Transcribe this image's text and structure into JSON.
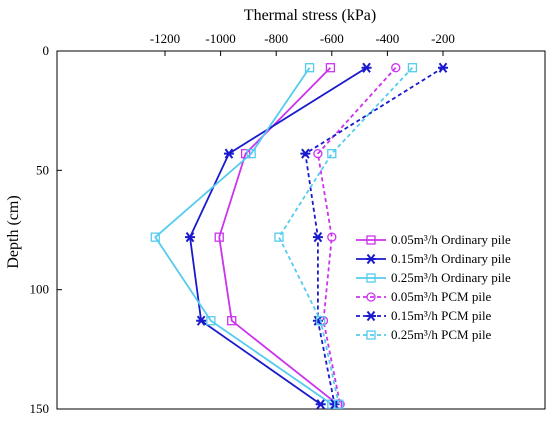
{
  "chart_data": {
    "type": "line",
    "xlabel": "Thermal stress (kPa)",
    "ylabel": "Depth (cm)",
    "xlim": [
      -1300,
      -150
    ],
    "ylim": [
      0,
      150
    ],
    "x_axis_position": "top",
    "y_inverted": true,
    "x_ticks": [
      -1200,
      -1000,
      -800,
      -600,
      -400,
      -200
    ],
    "y_ticks": [
      0,
      50,
      100,
      150
    ],
    "legend_position": "right-middle",
    "grid": false,
    "series": [
      {
        "name": "0.05m³/h Ordinary pile",
        "color": "#cc33ee",
        "dash": "solid",
        "marker": "square",
        "points": [
          [
            -605,
            7
          ],
          [
            -910,
            43
          ],
          [
            -1005,
            78
          ],
          [
            -960,
            113
          ],
          [
            -580,
            148
          ]
        ]
      },
      {
        "name": "0.15m³/h Ordinary pile",
        "color": "#1a1acc",
        "dash": "solid",
        "marker": "star",
        "points": [
          [
            -475,
            7
          ],
          [
            -970,
            43
          ],
          [
            -1110,
            78
          ],
          [
            -1070,
            113
          ],
          [
            -640,
            148
          ]
        ]
      },
      {
        "name": "0.25m³/h Ordinary pile",
        "color": "#55ccee",
        "dash": "solid",
        "marker": "square",
        "points": [
          [
            -680,
            7
          ],
          [
            -890,
            43
          ],
          [
            -1235,
            78
          ],
          [
            -1035,
            113
          ],
          [
            -600,
            148
          ]
        ]
      },
      {
        "name": "0.05m³/h PCM pile",
        "color": "#cc33ee",
        "dash": "dashed",
        "marker": "circle",
        "points": [
          [
            -370,
            7
          ],
          [
            -650,
            43
          ],
          [
            -600,
            78
          ],
          [
            -630,
            113
          ],
          [
            -570,
            148
          ]
        ]
      },
      {
        "name": "0.15m³/h PCM pile",
        "color": "#1a1acc",
        "dash": "dashed",
        "marker": "star",
        "points": [
          [
            -200,
            7
          ],
          [
            -695,
            43
          ],
          [
            -650,
            78
          ],
          [
            -650,
            113
          ],
          [
            -590,
            148
          ]
        ]
      },
      {
        "name": "0.25m³/h PCM pile",
        "color": "#55ccee",
        "dash": "dashed",
        "marker": "square",
        "points": [
          [
            -310,
            7
          ],
          [
            -600,
            43
          ],
          [
            -790,
            78
          ],
          [
            -640,
            113
          ],
          [
            -575,
            148
          ]
        ]
      }
    ]
  }
}
